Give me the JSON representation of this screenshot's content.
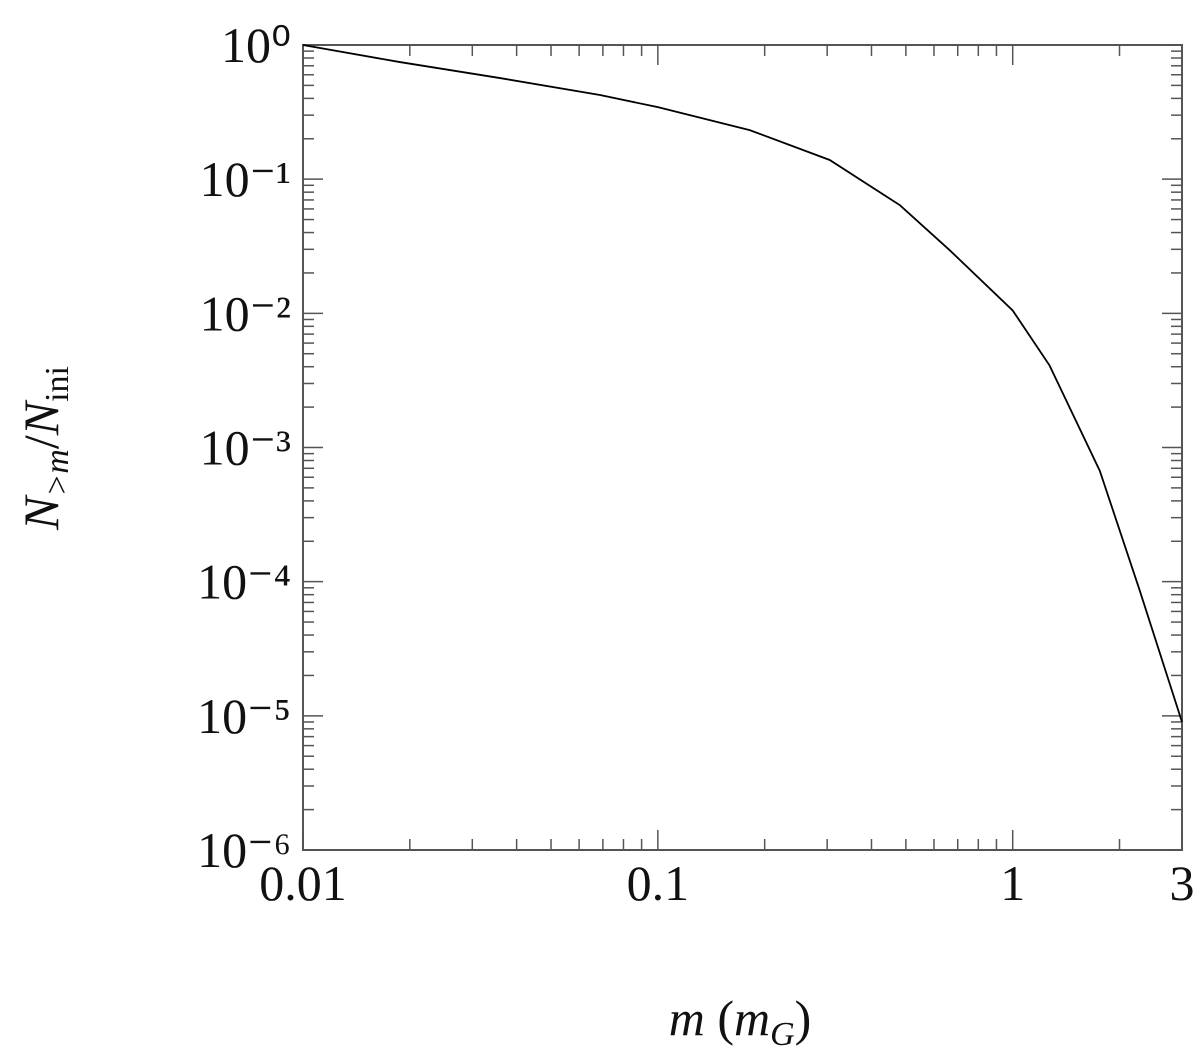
{
  "chart_data": {
    "type": "line",
    "x": [
      0.01,
      0.01875,
      0.0359,
      0.0687,
      0.1,
      0.1815,
      0.305,
      0.481,
      0.665,
      1,
      1.27,
      1.76,
      2.28,
      3
    ],
    "values": [
      1,
      0.746,
      0.567,
      0.424,
      0.344,
      0.232,
      0.139,
      0.064,
      0.0295,
      0.0105,
      0.00409,
      0.00067,
      8.6e-05,
      9e-06
    ],
    "color": "#000000",
    "xlim": [
      0.01,
      3
    ],
    "xticks": [
      0.01,
      0.1,
      1,
      3
    ],
    "xscale": "log",
    "ylim": [
      1e-06,
      1
    ],
    "yscale": "log",
    "yticks": [
      {
        "value": 1,
        "label": "10⁰"
      },
      {
        "value": 0.1,
        "label": "10⁻¹"
      },
      {
        "value": 0.01,
        "label": "10⁻²"
      },
      {
        "value": 0.001,
        "label": "10⁻³"
      },
      {
        "value": 0.0001,
        "label": "10⁻⁴"
      },
      {
        "value": 1e-05,
        "label": "10⁻⁵"
      },
      {
        "value": 1e-06,
        "label": "10⁻⁶"
      }
    ],
    "xlabel": [
      "m",
      " (",
      "m",
      "G",
      ")"
    ],
    "ylabel": [
      "N",
      ">m",
      "/",
      "N",
      "ini"
    ]
  }
}
